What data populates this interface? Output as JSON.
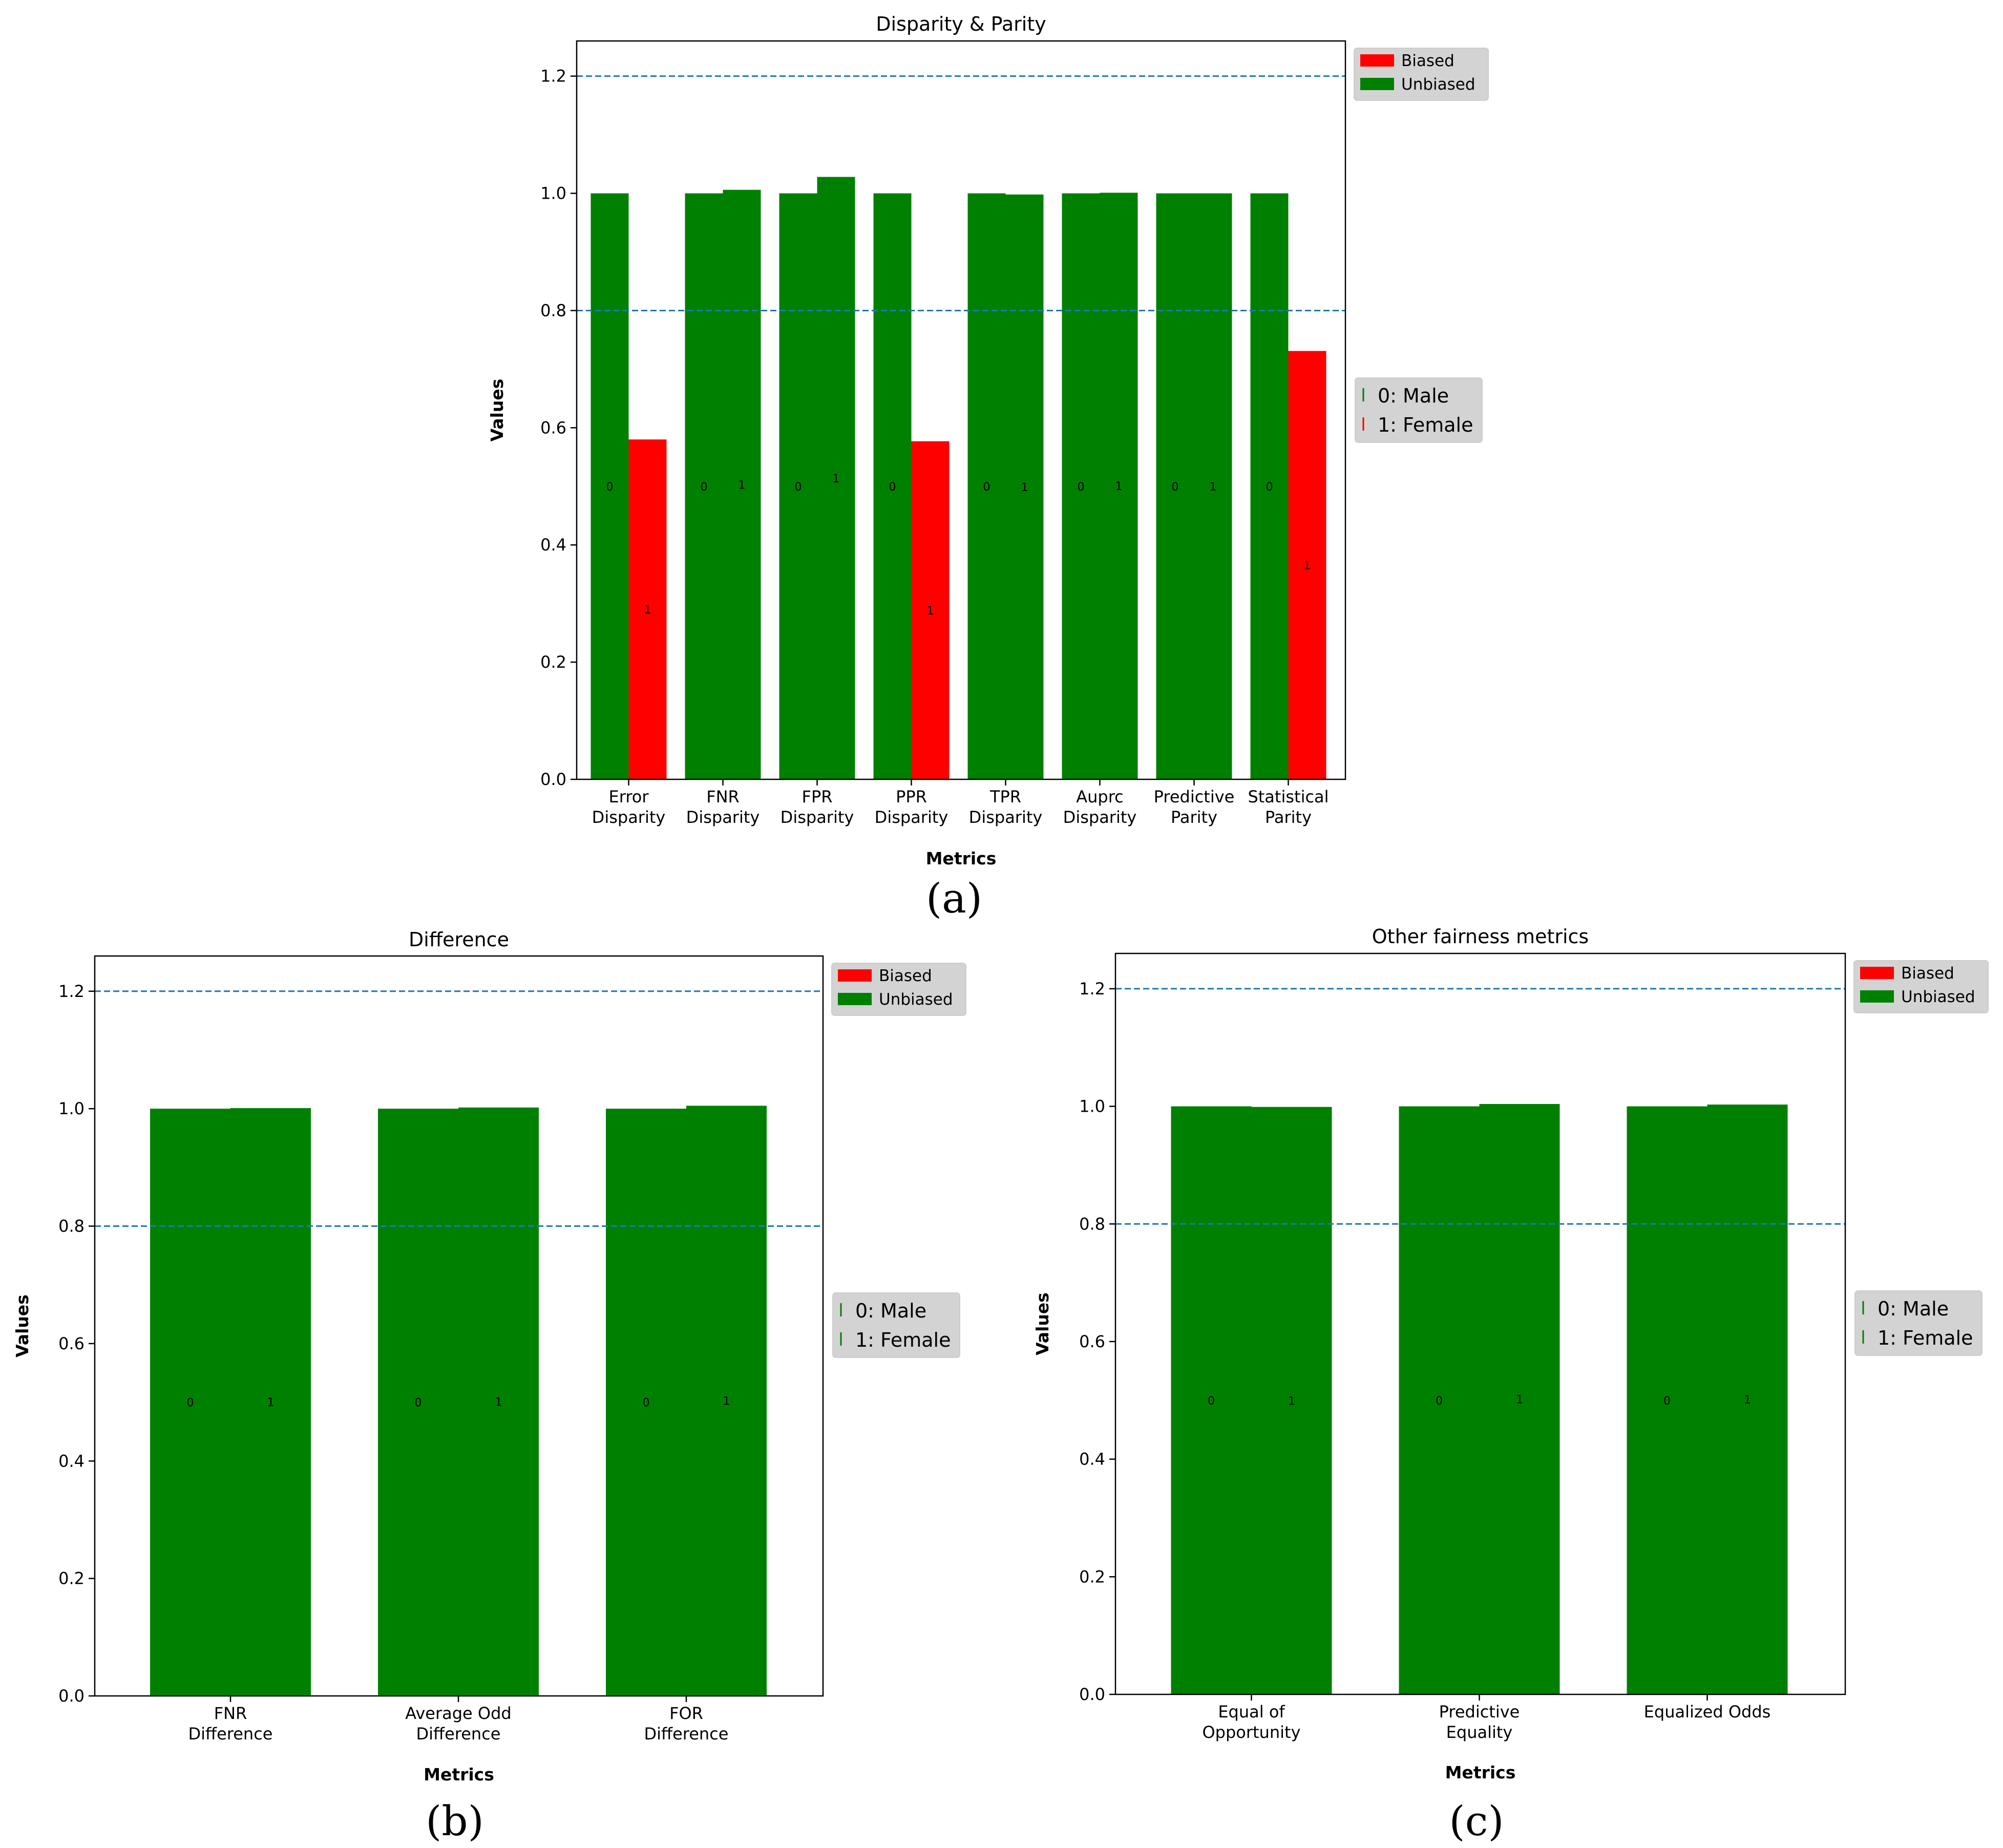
{
  "colors": {
    "biased": "#ff0000",
    "unbiased": "#008000",
    "threshold": "#1f77b4"
  },
  "chart_data": [
    {
      "type": "bar",
      "title": "Disparity & Parity",
      "caption": "(a)",
      "xlabel": "Metrics",
      "ylabel": "Values",
      "ylim": [
        0,
        1.26
      ],
      "yticks": [
        "0.0",
        "0.2",
        "0.4",
        "0.6",
        "0.8",
        "1.0",
        "1.2"
      ],
      "thresholds": [
        0.8,
        1.2
      ],
      "categories": [
        [
          "Error",
          "Disparity"
        ],
        [
          "FNR",
          "Disparity"
        ],
        [
          "FPR",
          "Disparity"
        ],
        [
          "PPR",
          "Disparity"
        ],
        [
          "TPR",
          "Disparity"
        ],
        [
          "Auprc",
          "Disparity"
        ],
        [
          "Predictive",
          "Parity"
        ],
        [
          "Statistical",
          "Parity"
        ]
      ],
      "series": [
        {
          "name": "0",
          "values": [
            1.0,
            1.0,
            1.0,
            1.0,
            1.0,
            1.0,
            1.0,
            1.0
          ],
          "status": [
            "Unbiased",
            "Unbiased",
            "Unbiased",
            "Unbiased",
            "Unbiased",
            "Unbiased",
            "Unbiased",
            "Unbiased"
          ]
        },
        {
          "name": "1",
          "values": [
            0.58,
            1.006,
            1.028,
            0.577,
            0.998,
            1.001,
            1.0,
            0.731
          ],
          "status": [
            "Biased",
            "Unbiased",
            "Unbiased",
            "Biased",
            "Unbiased",
            "Unbiased",
            "Unbiased",
            "Biased"
          ]
        }
      ],
      "legend_bias": [
        "Biased",
        "Unbiased"
      ],
      "legend_groups": [
        {
          "label": "0: Male",
          "status": "Unbiased"
        },
        {
          "label": "1: Female",
          "status": "Biased"
        }
      ]
    },
    {
      "type": "bar",
      "title": "Difference",
      "caption": "(b)",
      "xlabel": "Metrics",
      "ylabel": "Values",
      "ylim": [
        0,
        1.26
      ],
      "yticks": [
        "0.0",
        "0.2",
        "0.4",
        "0.6",
        "0.8",
        "1.0",
        "1.2"
      ],
      "thresholds": [
        0.8,
        1.2
      ],
      "categories": [
        [
          "FNR",
          "Difference"
        ],
        [
          "Average Odd",
          "Difference"
        ],
        [
          "FOR",
          "Difference"
        ]
      ],
      "series": [
        {
          "name": "0",
          "values": [
            1.0,
            1.0,
            1.0
          ],
          "status": [
            "Unbiased",
            "Unbiased",
            "Unbiased"
          ]
        },
        {
          "name": "1",
          "values": [
            1.001,
            1.002,
            1.005
          ],
          "status": [
            "Unbiased",
            "Unbiased",
            "Unbiased"
          ]
        }
      ],
      "legend_bias": [
        "Biased",
        "Unbiased"
      ],
      "legend_groups": [
        {
          "label": "0: Male",
          "status": "Unbiased"
        },
        {
          "label": "1: Female",
          "status": "Unbiased"
        }
      ]
    },
    {
      "type": "bar",
      "title": "Other fairness metrics",
      "caption": "(c)",
      "xlabel": "Metrics",
      "ylabel": "Values",
      "ylim": [
        0,
        1.26
      ],
      "yticks": [
        "0.0",
        "0.2",
        "0.4",
        "0.6",
        "0.8",
        "1.0",
        "1.2"
      ],
      "thresholds": [
        0.8,
        1.2
      ],
      "categories": [
        [
          "Equal of",
          "Opportunity"
        ],
        [
          "Predictive",
          "Equality"
        ],
        [
          "Equalized Odds"
        ]
      ],
      "series": [
        {
          "name": "0",
          "values": [
            1.0,
            1.0,
            1.0
          ],
          "status": [
            "Unbiased",
            "Unbiased",
            "Unbiased"
          ]
        },
        {
          "name": "1",
          "values": [
            0.999,
            1.004,
            1.003
          ],
          "status": [
            "Unbiased",
            "Unbiased",
            "Unbiased"
          ]
        }
      ],
      "legend_bias": [
        "Biased",
        "Unbiased"
      ],
      "legend_groups": [
        {
          "label": "0: Male",
          "status": "Unbiased"
        },
        {
          "label": "1: Female",
          "status": "Unbiased"
        }
      ]
    }
  ]
}
